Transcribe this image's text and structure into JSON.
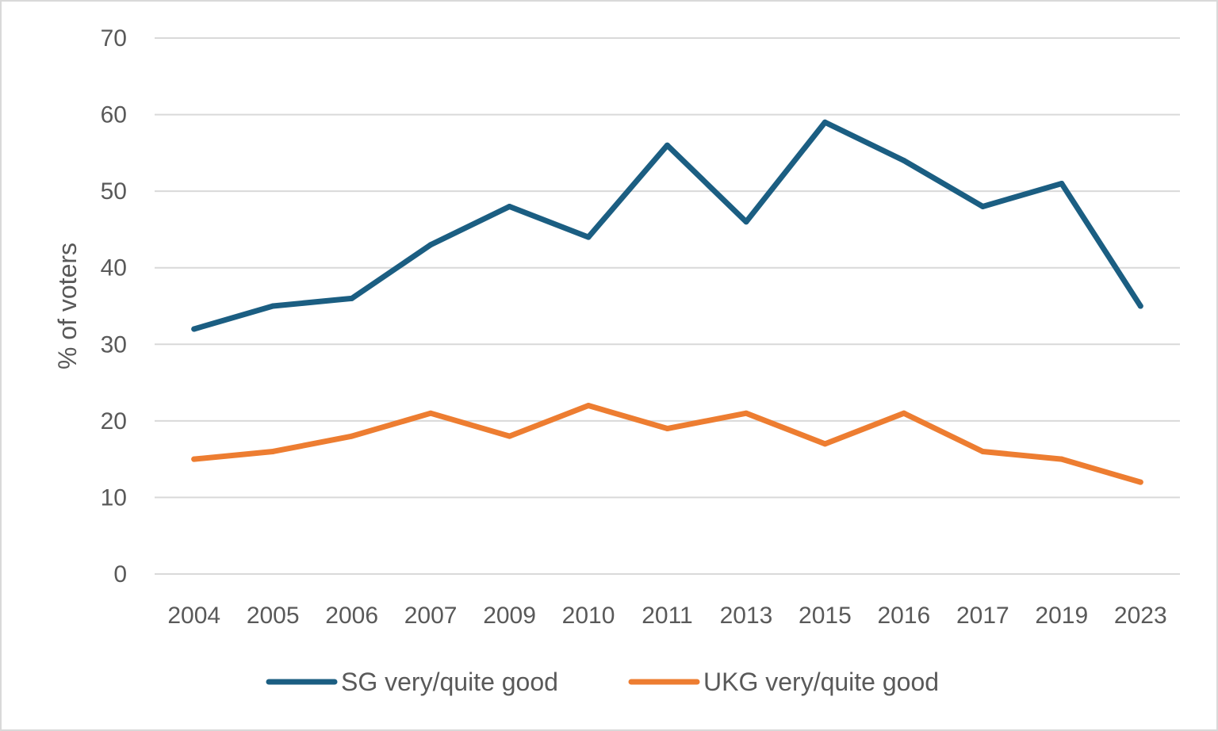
{
  "chart_data": {
    "type": "line",
    "title": "",
    "xlabel": "",
    "ylabel": "% of voters",
    "categories": [
      "2004",
      "2005",
      "2006",
      "2007",
      "2009",
      "2010",
      "2011",
      "2013",
      "2015",
      "2016",
      "2017",
      "2019",
      "2023"
    ],
    "ylim": [
      0,
      70
    ],
    "yticks": [
      "0",
      "10",
      "20",
      "30",
      "40",
      "50",
      "60",
      "70"
    ],
    "grid": true,
    "legend_position": "bottom",
    "series": [
      {
        "name": "SG very/quite good",
        "color": "#1b5e82",
        "values": [
          32,
          35,
          36,
          43,
          48,
          44,
          56,
          46,
          59,
          54,
          48,
          51,
          35
        ]
      },
      {
        "name": "UKG very/quite good",
        "color": "#ed7d31",
        "values": [
          15,
          16,
          18,
          21,
          18,
          22,
          19,
          21,
          17,
          21,
          16,
          15,
          12
        ]
      }
    ]
  }
}
